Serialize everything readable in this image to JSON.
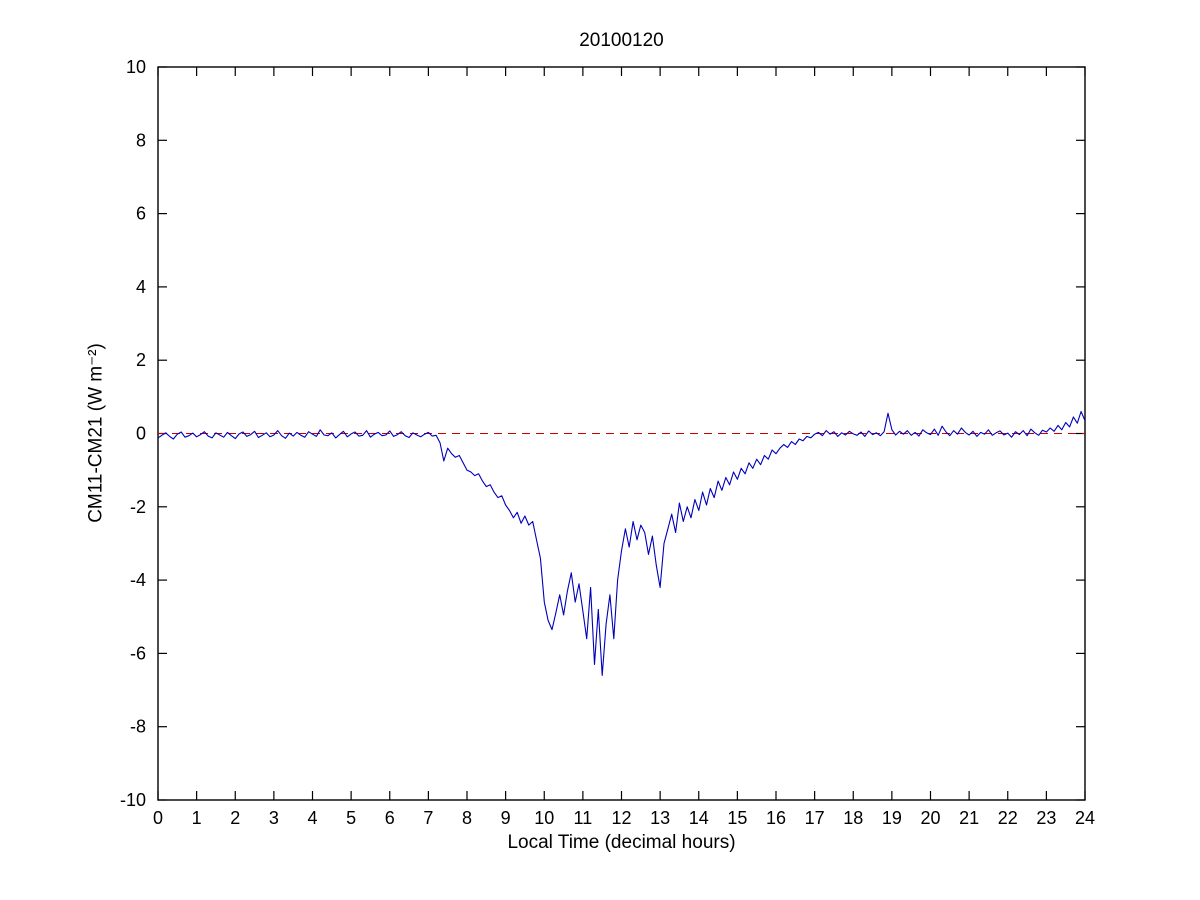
{
  "figure": {
    "title": "20100120",
    "xlabel": "Local Time (decimal hours)",
    "ylabel": "CM11-CM21 (W m⁻²)"
  },
  "chart_data": {
    "type": "line",
    "title": "20100120",
    "xlabel": "Local Time (decimal hours)",
    "ylabel": "CM11-CM21 (W m-2)",
    "xlim": [
      0,
      24
    ],
    "ylim": [
      -10,
      10
    ],
    "xticks": [
      0,
      1,
      2,
      3,
      4,
      5,
      6,
      7,
      8,
      9,
      10,
      11,
      12,
      13,
      14,
      15,
      16,
      17,
      18,
      19,
      20,
      21,
      22,
      23,
      24
    ],
    "yticks": [
      -10,
      -8,
      -6,
      -4,
      -2,
      0,
      2,
      4,
      6,
      8,
      10
    ],
    "grid": false,
    "legend": "none",
    "series": [
      {
        "name": "CM11-CM21 difference",
        "type": "line",
        "color": "#0000BB",
        "x_start": 0,
        "x_step": 0.1,
        "values": [
          -0.12,
          -0.05,
          0.02,
          -0.08,
          -0.15,
          -0.02,
          0.04,
          -0.1,
          -0.06,
          0.01,
          -0.09,
          -0.03,
          0.05,
          -0.07,
          -0.12,
          0.02,
          -0.04,
          -0.1,
          0.03,
          -0.06,
          -0.14,
          -0.01,
          0.04,
          -0.08,
          -0.03,
          0.06,
          -0.11,
          -0.05,
          0.02,
          -0.09,
          -0.04,
          0.08,
          -0.06,
          -0.13,
          0.01,
          -0.07,
          0.03,
          -0.05,
          -0.1,
          0.05,
          -0.02,
          -0.08,
          0.1,
          -0.04,
          -0.06,
          0.02,
          -0.12,
          -0.03,
          0.06,
          -0.09,
          -0.01,
          0.04,
          -0.07,
          -0.05,
          0.08,
          -0.1,
          -0.02,
          0.03,
          -0.06,
          -0.04,
          0.07,
          -0.08,
          -0.03,
          0.05,
          -0.06,
          -0.11,
          0.02,
          -0.04,
          -0.09,
          -0.02,
          0.03,
          -0.07,
          -0.05,
          -0.25,
          -0.75,
          -0.4,
          -0.55,
          -0.65,
          -0.6,
          -0.8,
          -1.0,
          -1.05,
          -1.15,
          -1.1,
          -1.3,
          -1.45,
          -1.4,
          -1.6,
          -1.75,
          -1.7,
          -1.95,
          -2.1,
          -2.3,
          -2.15,
          -2.45,
          -2.25,
          -2.5,
          -2.4,
          -2.9,
          -3.4,
          -4.6,
          -5.1,
          -5.35,
          -4.9,
          -4.4,
          -4.95,
          -4.3,
          -3.8,
          -4.6,
          -4.1,
          -4.85,
          -5.6,
          -4.2,
          -6.3,
          -4.8,
          -6.6,
          -5.2,
          -4.4,
          -5.6,
          -4.0,
          -3.2,
          -2.6,
          -3.1,
          -2.4,
          -2.9,
          -2.5,
          -2.7,
          -3.3,
          -2.8,
          -3.6,
          -4.2,
          -3.0,
          -2.6,
          -2.2,
          -2.7,
          -1.9,
          -2.4,
          -2.0,
          -2.3,
          -1.8,
          -2.1,
          -1.6,
          -1.95,
          -1.5,
          -1.75,
          -1.3,
          -1.55,
          -1.2,
          -1.4,
          -1.05,
          -1.25,
          -0.95,
          -1.1,
          -0.8,
          -0.95,
          -0.7,
          -0.85,
          -0.6,
          -0.7,
          -0.45,
          -0.55,
          -0.4,
          -0.3,
          -0.38,
          -0.22,
          -0.3,
          -0.15,
          -0.2,
          -0.08,
          -0.12,
          -0.02,
          0.03,
          -0.06,
          0.08,
          -0.02,
          0.05,
          -0.08,
          0.02,
          -0.04,
          0.06,
          -0.01,
          -0.05,
          0.04,
          -0.08,
          0.07,
          -0.03,
          0.02,
          -0.06,
          0.05,
          0.55,
          0.1,
          -0.04,
          0.06,
          -0.02,
          0.08,
          -0.05,
          0.03,
          -0.07,
          0.1,
          0.02,
          -0.03,
          0.12,
          -0.05,
          0.2,
          0.04,
          -0.06,
          0.08,
          -0.02,
          0.15,
          0.03,
          -0.04,
          0.06,
          -0.08,
          0.03,
          -0.02,
          0.1,
          -0.05,
          0.02,
          0.07,
          -0.04,
          0.01,
          -0.1,
          0.05,
          -0.03,
          0.08,
          -0.06,
          0.12,
          0.02,
          -0.05,
          0.09,
          0.04,
          0.15,
          0.06,
          0.22,
          0.1,
          0.3,
          0.18,
          0.45,
          0.28,
          0.6,
          0.35
        ]
      },
      {
        "name": "zero reference line",
        "type": "hline",
        "color": "#CC0000",
        "style": "dashed",
        "y": 0
      }
    ]
  }
}
